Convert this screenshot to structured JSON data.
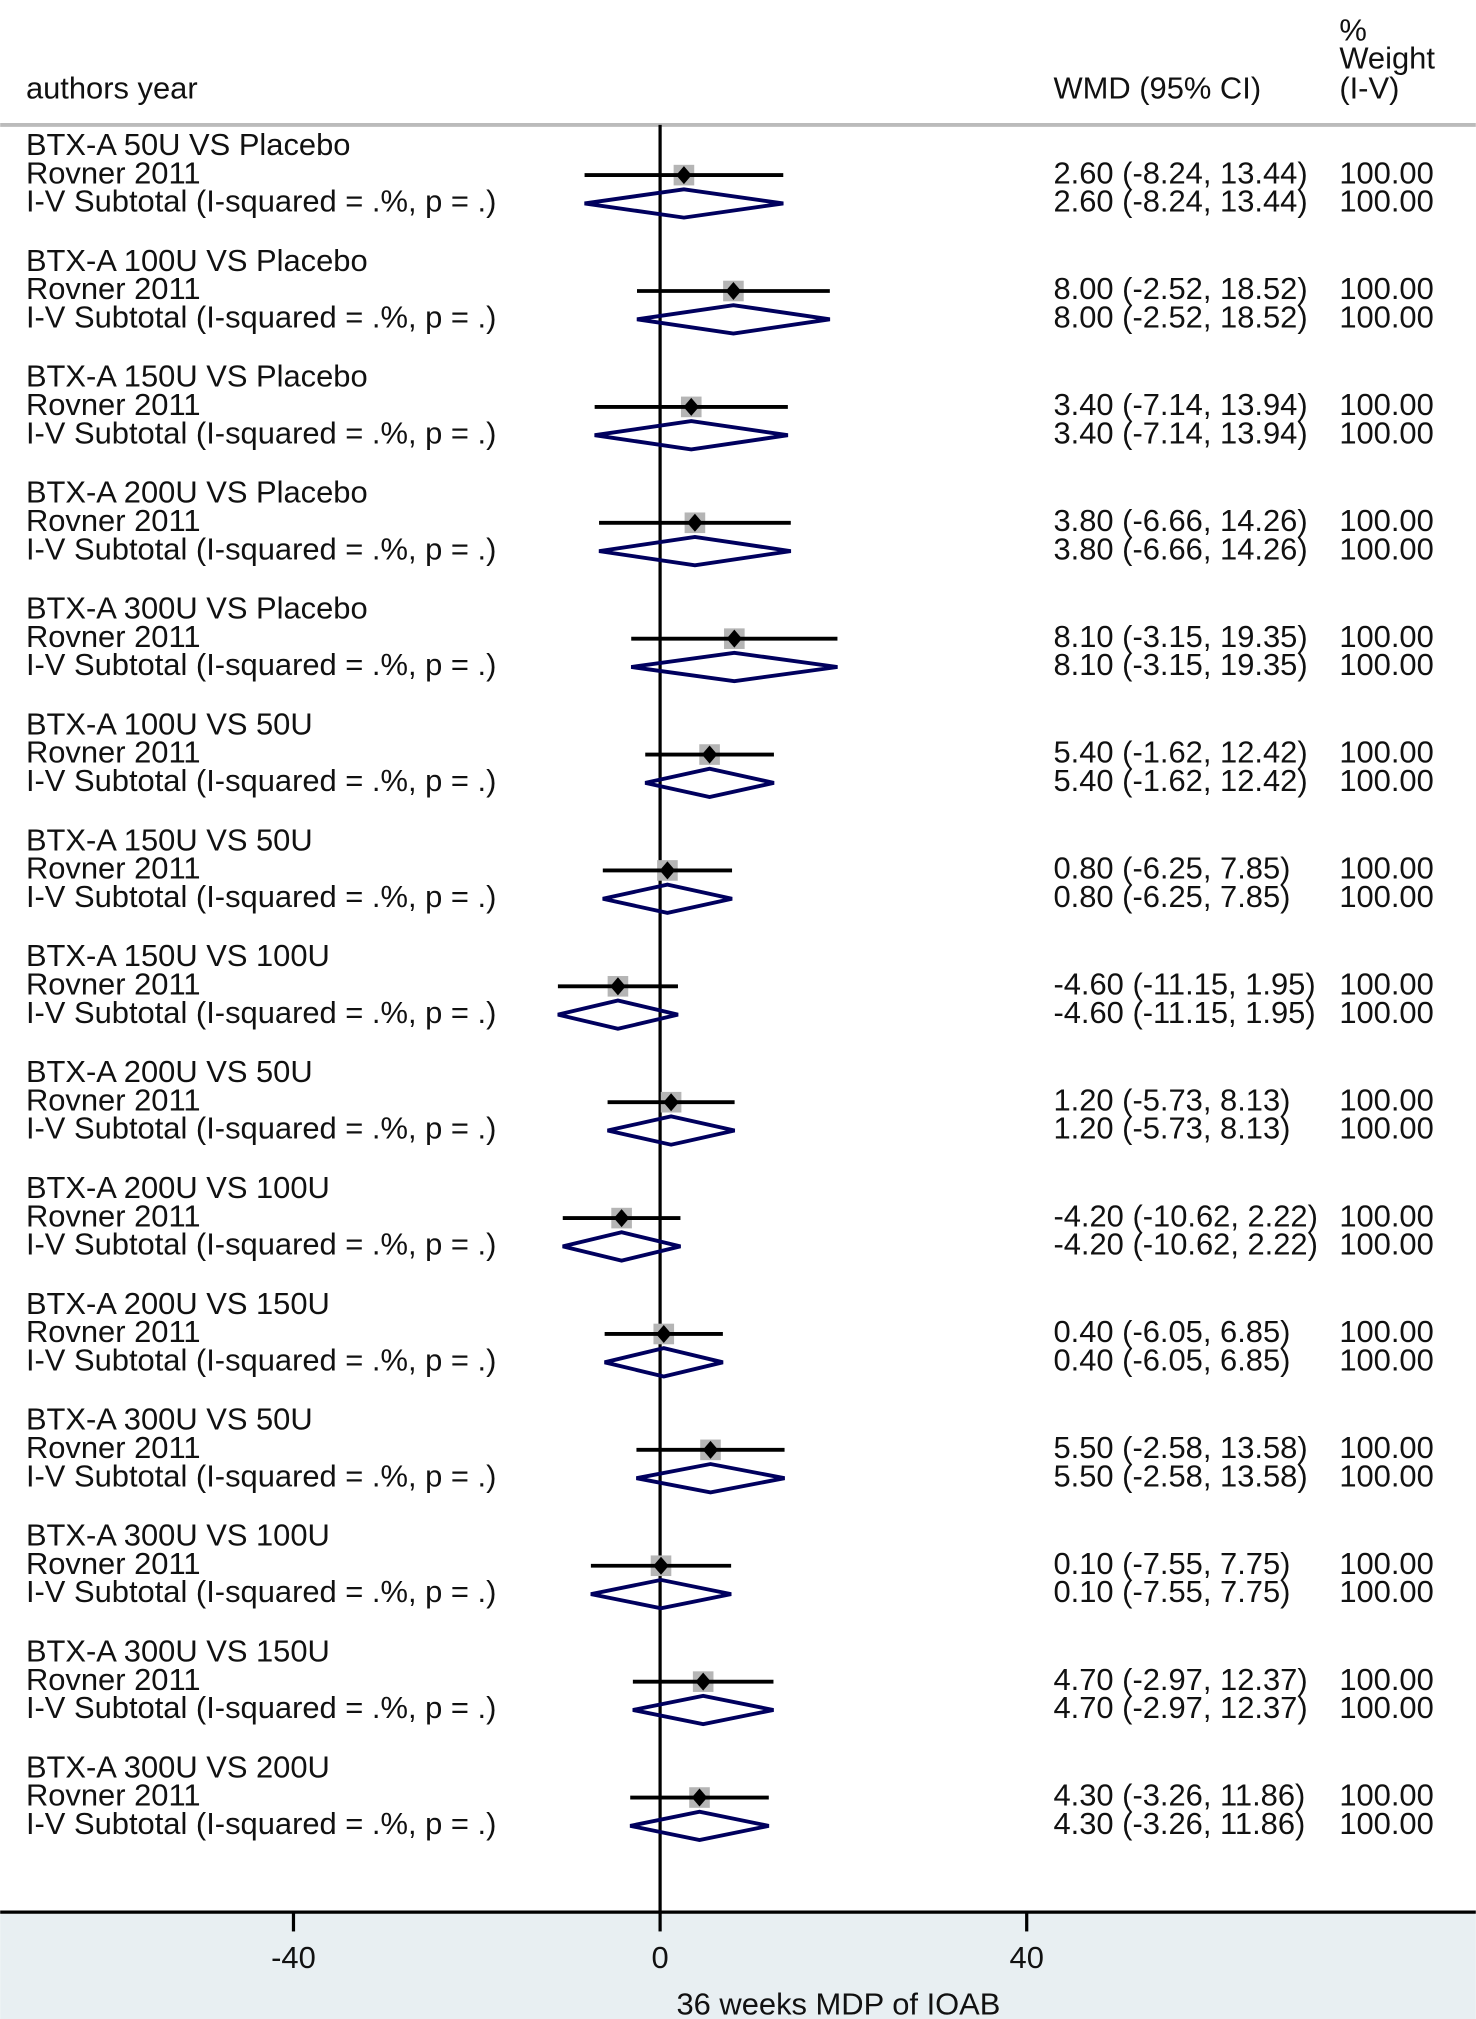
{
  "chart_data": {
    "type": "forest",
    "headers": {
      "study": "authors   year",
      "effect": "WMD (95% CI)",
      "weight": [
        "%",
        "Weight",
        "(I-V)"
      ]
    },
    "xlabel": "36 weeks MDP of IOAB",
    "xlim": [
      -72,
      89
    ],
    "xticks": [
      -40,
      0,
      40
    ],
    "groups": [
      {
        "name": "BTX-A 50U VS Placebo",
        "study": "Rovner   2011",
        "subtotal": "I-V Subtotal  (I-squared = .%, p = .)",
        "estimate": 2.6,
        "lo": -8.24,
        "hi": 13.44,
        "value_label": "2.60 (-8.24, 13.44)",
        "weight": "100.00"
      },
      {
        "name": "BTX-A 100U VS Placebo",
        "study": "Rovner   2011",
        "subtotal": "I-V Subtotal  (I-squared = .%, p = .)",
        "estimate": 8.0,
        "lo": -2.52,
        "hi": 18.52,
        "value_label": "8.00 (-2.52, 18.52)",
        "weight": "100.00"
      },
      {
        "name": "BTX-A 150U VS Placebo",
        "study": "Rovner   2011",
        "subtotal": "I-V Subtotal  (I-squared = .%, p = .)",
        "estimate": 3.4,
        "lo": -7.14,
        "hi": 13.94,
        "value_label": "3.40 (-7.14, 13.94)",
        "weight": "100.00"
      },
      {
        "name": "BTX-A 200U VS Placebo",
        "study": "Rovner   2011",
        "subtotal": "I-V Subtotal  (I-squared = .%, p = .)",
        "estimate": 3.8,
        "lo": -6.66,
        "hi": 14.26,
        "value_label": "3.80 (-6.66, 14.26)",
        "weight": "100.00"
      },
      {
        "name": "BTX-A 300U VS Placebo",
        "study": "Rovner   2011",
        "subtotal": "I-V Subtotal  (I-squared = .%, p = .)",
        "estimate": 8.1,
        "lo": -3.15,
        "hi": 19.35,
        "value_label": "8.10 (-3.15, 19.35)",
        "weight": "100.00"
      },
      {
        "name": "BTX-A 100U VS 50U",
        "study": "Rovner   2011",
        "subtotal": "I-V Subtotal  (I-squared = .%, p = .)",
        "estimate": 5.4,
        "lo": -1.62,
        "hi": 12.42,
        "value_label": "5.40 (-1.62, 12.42)",
        "weight": "100.00"
      },
      {
        "name": "BTX-A 150U VS 50U",
        "study": "Rovner   2011",
        "subtotal": "I-V Subtotal  (I-squared = .%, p = .)",
        "estimate": 0.8,
        "lo": -6.25,
        "hi": 7.85,
        "value_label": "0.80 (-6.25, 7.85)",
        "weight": "100.00"
      },
      {
        "name": "BTX-A 150U VS 100U",
        "study": "Rovner   2011",
        "subtotal": "I-V Subtotal  (I-squared = .%, p = .)",
        "estimate": -4.6,
        "lo": -11.15,
        "hi": 1.95,
        "value_label": "-4.60 (-11.15, 1.95)",
        "weight": "100.00"
      },
      {
        "name": "BTX-A 200U VS 50U",
        "study": "Rovner   2011",
        "subtotal": "I-V Subtotal  (I-squared = .%, p = .)",
        "estimate": 1.2,
        "lo": -5.73,
        "hi": 8.13,
        "value_label": "1.20 (-5.73, 8.13)",
        "weight": "100.00"
      },
      {
        "name": "BTX-A 200U VS 100U",
        "study": "Rovner   2011",
        "subtotal": "I-V Subtotal  (I-squared = .%, p = .)",
        "estimate": -4.2,
        "lo": -10.62,
        "hi": 2.22,
        "value_label": "-4.20 (-10.62, 2.22)",
        "weight": "100.00"
      },
      {
        "name": "BTX-A 200U VS 150U",
        "study": "Rovner   2011",
        "subtotal": "I-V Subtotal  (I-squared = .%, p = .)",
        "estimate": 0.4,
        "lo": -6.05,
        "hi": 6.85,
        "value_label": "0.40 (-6.05, 6.85)",
        "weight": "100.00"
      },
      {
        "name": "BTX-A 300U VS 50U",
        "study": "Rovner   2011",
        "subtotal": "I-V Subtotal  (I-squared = .%, p = .)",
        "estimate": 5.5,
        "lo": -2.58,
        "hi": 13.58,
        "value_label": "5.50 (-2.58, 13.58)",
        "weight": "100.00"
      },
      {
        "name": "BTX-A 300U VS 100U",
        "study": "Rovner   2011",
        "subtotal": "I-V Subtotal  (I-squared = .%, p = .)",
        "estimate": 0.1,
        "lo": -7.55,
        "hi": 7.75,
        "value_label": "0.10 (-7.55, 7.75)",
        "weight": "100.00"
      },
      {
        "name": "BTX-A 300U VS 150U",
        "study": "Rovner   2011",
        "subtotal": "I-V Subtotal  (I-squared = .%, p = .)",
        "estimate": 4.7,
        "lo": -2.97,
        "hi": 12.37,
        "value_label": "4.70 (-2.97, 12.37)",
        "weight": "100.00"
      },
      {
        "name": "BTX-A 300U VS 200U",
        "study": "Rovner   2011",
        "subtotal": "I-V Subtotal  (I-squared = .%, p = .)",
        "estimate": 4.3,
        "lo": -3.26,
        "hi": 11.86,
        "value_label": "4.30 (-3.26, 11.86)",
        "weight": "100.00"
      }
    ]
  }
}
